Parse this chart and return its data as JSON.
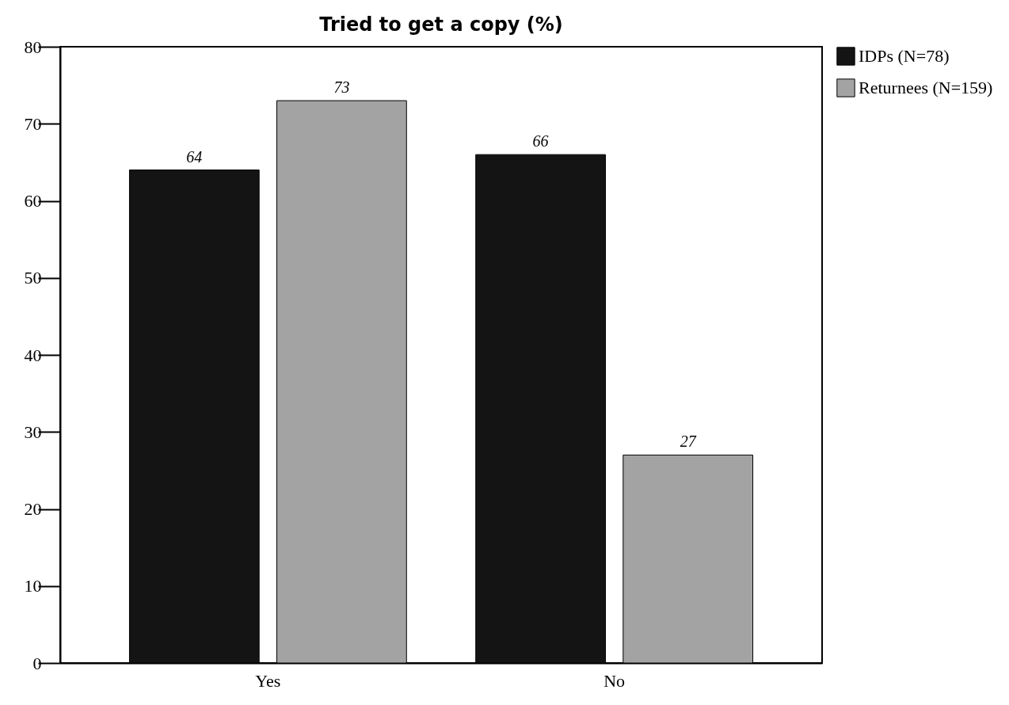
{
  "chart_data": {
    "type": "bar",
    "title": "Tried to get a copy (%)",
    "categories": [
      "Yes",
      "No"
    ],
    "series": [
      {
        "name": "IDPs (N=78)",
        "color": "#141414",
        "values": [
          64,
          66
        ]
      },
      {
        "name": "Returnees (N=159)",
        "color": "#a3a3a3",
        "values": [
          73,
          27
        ]
      }
    ],
    "ylim": [
      0,
      80
    ],
    "yticks": [
      0,
      10,
      20,
      30,
      40,
      50,
      60,
      70,
      80
    ],
    "data_labels": true,
    "legend": "right",
    "grid": false
  }
}
